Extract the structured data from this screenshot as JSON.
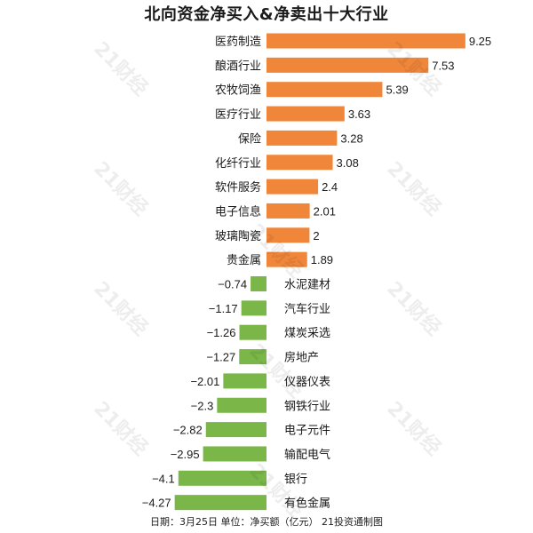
{
  "chart_data": {
    "type": "bar",
    "orientation": "horizontal",
    "title": "北向资金净买入&净卖出十大行业",
    "categories": [
      "医药制造",
      "酿酒行业",
      "农牧饲渔",
      "医疗行业",
      "保险",
      "化纤行业",
      "软件服务",
      "电子信息",
      "玻璃陶瓷",
      "贵金属",
      "水泥建材",
      "汽车行业",
      "煤炭采选",
      "房地产",
      "仪器仪表",
      "钢铁行业",
      "电子元件",
      "输配电气",
      "银行",
      "有色金属"
    ],
    "values": [
      9.25,
      7.53,
      5.39,
      3.63,
      3.28,
      3.08,
      2.4,
      2.01,
      2,
      1.89,
      -0.74,
      -1.17,
      -1.26,
      -1.27,
      -2.01,
      -2.3,
      -2.82,
      -2.95,
      -4.1,
      -4.27
    ],
    "value_labels": [
      "9.25",
      "7.53",
      "5.39",
      "3.63",
      "3.28",
      "3.08",
      "2.4",
      "2.01",
      "2",
      "1.89",
      "−0.74",
      "−1.17",
      "−1.26",
      "−1.27",
      "−2.01",
      "−2.3",
      "−2.82",
      "−2.95",
      "−4.1",
      "−4.27"
    ],
    "colors": {
      "positive": "#F0863A",
      "negative": "#7AB648"
    },
    "footer": "日期：3月25日 单位：净买额（亿元） 21投资通制图",
    "watermark_text": "21财经",
    "grid": false
  }
}
